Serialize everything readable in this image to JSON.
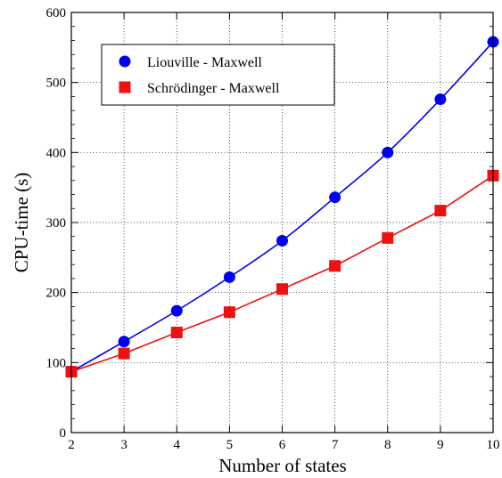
{
  "chart_data": {
    "type": "line",
    "title": "",
    "xlabel": "Number of states",
    "ylabel": "CPU-time (s)",
    "xlim": [
      2,
      10
    ],
    "ylim": [
      0,
      600
    ],
    "x_ticks": [
      2,
      3,
      4,
      5,
      6,
      7,
      8,
      9,
      10
    ],
    "y_ticks": [
      0,
      100,
      200,
      300,
      400,
      500,
      600
    ],
    "grid": true,
    "legend_position": "top-left",
    "x": [
      2,
      3,
      4,
      5,
      6,
      7,
      8,
      9,
      10
    ],
    "series": [
      {
        "name": "Liouville - Maxwell",
        "marker": "circle",
        "color": "#0000ee",
        "smooth": true,
        "values": [
          87,
          130,
          174,
          222,
          274,
          336,
          400,
          476,
          558
        ]
      },
      {
        "name": "Schrödinger - Maxwell",
        "marker": "square",
        "color": "#ee1111",
        "smooth": false,
        "values": [
          87,
          113,
          143,
          172,
          205,
          238,
          278,
          317,
          367
        ]
      }
    ]
  }
}
